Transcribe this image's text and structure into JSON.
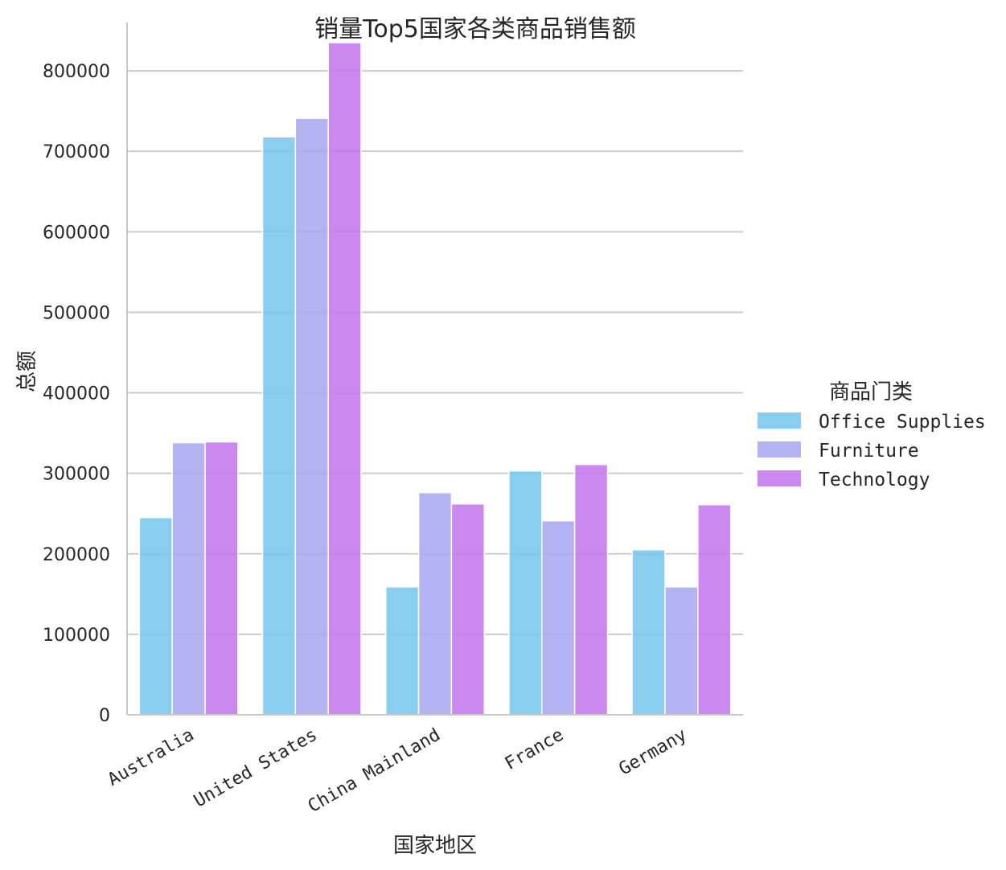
{
  "chart_data": {
    "type": "bar",
    "title": "销量Top5国家各类商品销售额",
    "xlabel": "国家地区",
    "ylabel": "总额",
    "categories": [
      "Australia",
      "United States",
      "China Mainland",
      "France",
      "Germany"
    ],
    "series": [
      {
        "name": "Office Supplies",
        "color": "#75c5ec",
        "values": [
          245000,
          718000,
          159000,
          303000,
          205000
        ]
      },
      {
        "name": "Furniture",
        "color": "#a6a6f0",
        "values": [
          338000,
          741000,
          276000,
          241000,
          159000
        ]
      },
      {
        "name": "Technology",
        "color": "#c274ec",
        "values": [
          339000,
          835000,
          262000,
          311000,
          261000
        ]
      }
    ],
    "ylim": [
      0,
      860000
    ],
    "yticks": [
      0,
      100000,
      200000,
      300000,
      400000,
      500000,
      600000,
      700000,
      800000
    ],
    "ytick_labels": [
      "0",
      "100000",
      "200000",
      "300000",
      "400000",
      "500000",
      "600000",
      "700000",
      "800000"
    ],
    "grid": "horizontal",
    "legend": {
      "title": "商品门类",
      "placement": "right"
    }
  }
}
